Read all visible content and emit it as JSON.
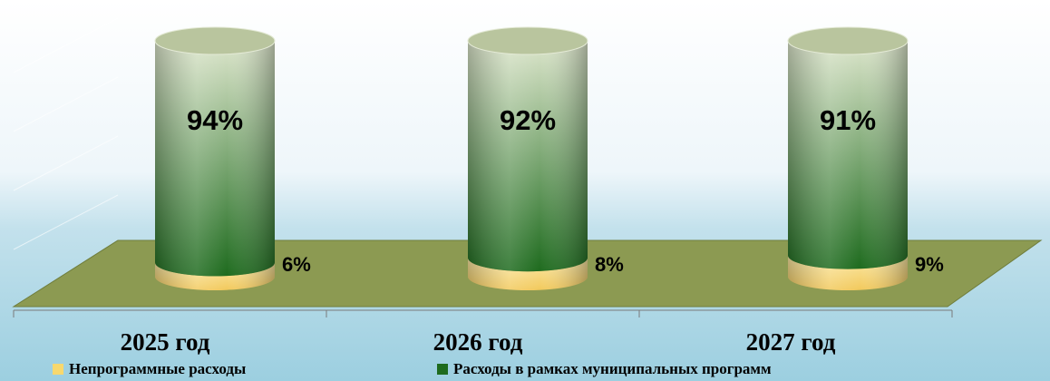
{
  "chart_data": {
    "type": "bar",
    "stacked": true,
    "categories": [
      "2025 год",
      "2026 год",
      "2027 год"
    ],
    "series": [
      {
        "name": "Непрограммные расходы",
        "color": "#f2c95c",
        "values": [
          6,
          8,
          9
        ],
        "value_labels": [
          "6%",
          "8%",
          "9%"
        ]
      },
      {
        "name": "Расходы в рамках муниципальных программ",
        "color": "#1e6b1e",
        "values": [
          94,
          92,
          91
        ],
        "value_labels": [
          "94%",
          "92%",
          "91%"
        ]
      }
    ],
    "ylim": [
      0,
      100
    ]
  }
}
